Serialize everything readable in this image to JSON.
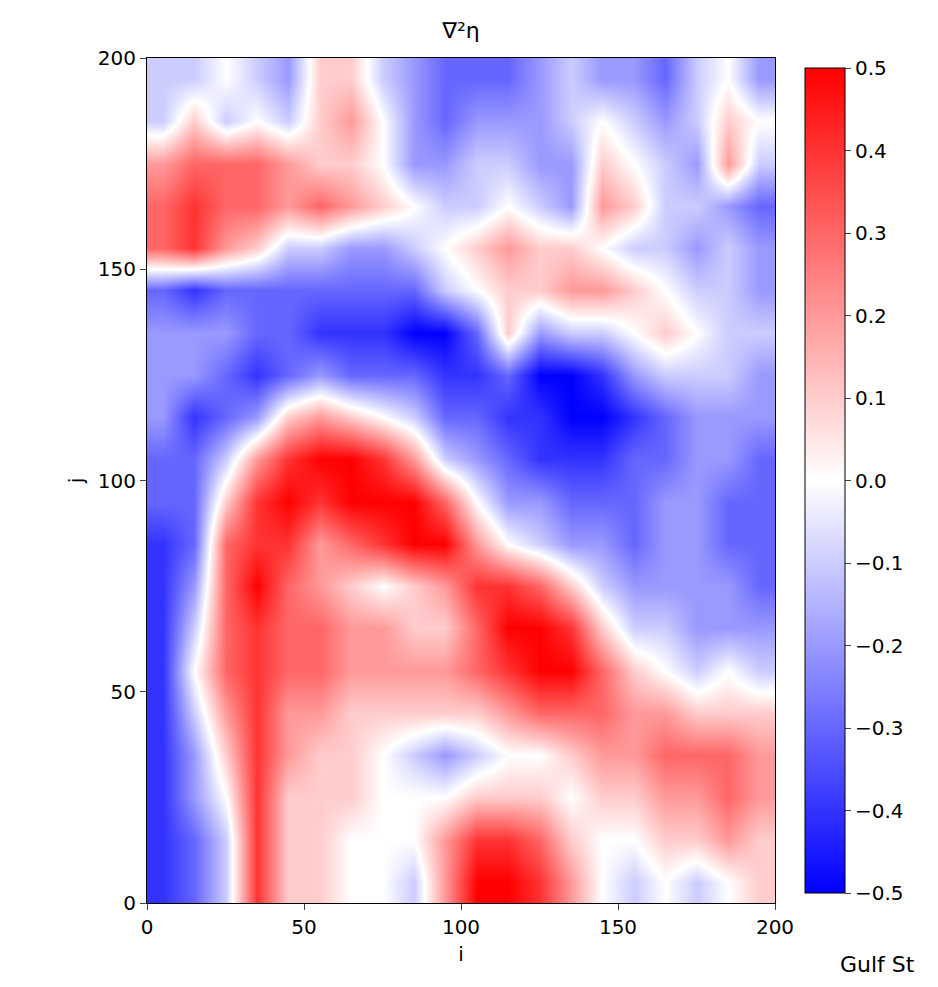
{
  "chart_data": {
    "type": "heatmap",
    "title": "∇²η",
    "x_label": "i",
    "y_label": "j",
    "x": [
      5,
      15,
      25,
      35,
      45,
      55,
      65,
      75,
      85,
      95,
      105,
      115,
      125,
      135,
      145,
      155,
      165,
      175,
      185,
      195
    ],
    "y": [
      5,
      15,
      25,
      35,
      45,
      55,
      65,
      75,
      85,
      95,
      105,
      115,
      125,
      135,
      145,
      155,
      165,
      175,
      185,
      195
    ],
    "cells": [
      [
        -0.4,
        -0.3,
        -0.1,
        0.4,
        0.1,
        0.1,
        0.0,
        0.0,
        -0.1,
        0.2,
        0.5,
        0.5,
        0.4,
        0.2,
        0.0,
        -0.1,
        0.0,
        -0.1,
        0.0,
        0.1
      ],
      [
        -0.4,
        -0.3,
        -0.1,
        0.4,
        0.1,
        0.1,
        0.0,
        0.0,
        0.0,
        0.2,
        0.4,
        0.4,
        0.3,
        0.1,
        0.0,
        0.0,
        0.1,
        0.1,
        0.2,
        0.1
      ],
      [
        -0.4,
        -0.2,
        0.0,
        0.4,
        0.1,
        0.1,
        0.1,
        0.0,
        0.0,
        0.0,
        0.1,
        0.1,
        0.1,
        0.0,
        0.1,
        0.1,
        0.2,
        0.2,
        0.3,
        0.2
      ],
      [
        -0.4,
        -0.2,
        0.1,
        0.4,
        0.2,
        0.1,
        0.1,
        0.0,
        -0.1,
        -0.2,
        -0.1,
        0.0,
        0.0,
        0.1,
        0.2,
        0.2,
        0.3,
        0.3,
        0.3,
        0.2
      ],
      [
        -0.4,
        -0.1,
        0.2,
        0.4,
        0.2,
        0.2,
        0.1,
        0.1,
        0.1,
        0.1,
        0.1,
        0.2,
        0.3,
        0.3,
        0.3,
        0.2,
        0.2,
        0.1,
        0.1,
        0.1
      ],
      [
        -0.4,
        0.0,
        0.3,
        0.4,
        0.3,
        0.3,
        0.2,
        0.2,
        0.2,
        0.2,
        0.3,
        0.4,
        0.5,
        0.5,
        0.3,
        0.1,
        0.0,
        -0.1,
        0.0,
        -0.1
      ],
      [
        -0.4,
        -0.1,
        0.3,
        0.4,
        0.3,
        0.3,
        0.2,
        0.2,
        0.1,
        0.1,
        0.3,
        0.5,
        0.5,
        0.4,
        0.1,
        -0.1,
        -0.1,
        -0.2,
        -0.2,
        -0.2
      ],
      [
        -0.4,
        -0.2,
        0.3,
        0.5,
        0.3,
        0.2,
        0.1,
        0.0,
        0.1,
        0.2,
        0.4,
        0.4,
        0.3,
        0.1,
        -0.1,
        -0.2,
        -0.2,
        -0.2,
        -0.2,
        -0.3
      ],
      [
        -0.4,
        -0.3,
        0.3,
        0.4,
        0.4,
        0.2,
        0.3,
        0.4,
        0.5,
        0.5,
        0.2,
        0.0,
        -0.1,
        -0.2,
        -0.2,
        -0.3,
        -0.2,
        -0.2,
        -0.3,
        -0.3
      ],
      [
        -0.3,
        -0.3,
        0.1,
        0.4,
        0.5,
        0.4,
        0.5,
        0.5,
        0.5,
        0.3,
        0.0,
        -0.2,
        -0.2,
        -0.3,
        -0.3,
        -0.3,
        -0.2,
        -0.2,
        -0.3,
        -0.3
      ],
      [
        -0.3,
        -0.3,
        -0.1,
        0.2,
        0.4,
        0.5,
        0.5,
        0.4,
        0.2,
        -0.1,
        -0.2,
        -0.3,
        -0.4,
        -0.4,
        -0.4,
        -0.3,
        -0.3,
        -0.2,
        -0.2,
        -0.3
      ],
      [
        -0.2,
        -0.4,
        -0.3,
        -0.2,
        0.1,
        0.2,
        0.1,
        0.0,
        -0.1,
        -0.3,
        -0.3,
        -0.4,
        -0.4,
        -0.5,
        -0.5,
        -0.4,
        -0.3,
        -0.2,
        -0.2,
        -0.2
      ],
      [
        -0.2,
        -0.2,
        -0.3,
        -0.4,
        -0.3,
        -0.2,
        -0.3,
        -0.3,
        -0.3,
        -0.4,
        -0.4,
        -0.3,
        -0.5,
        -0.5,
        -0.4,
        -0.2,
        -0.1,
        -0.1,
        -0.1,
        -0.2
      ],
      [
        -0.2,
        -0.2,
        -0.2,
        -0.3,
        -0.3,
        -0.4,
        -0.4,
        -0.4,
        -0.5,
        -0.5,
        -0.3,
        0.1,
        -0.2,
        -0.1,
        -0.1,
        0.0,
        0.1,
        0.0,
        -0.1,
        -0.1
      ],
      [
        -0.3,
        -0.4,
        -0.3,
        -0.3,
        -0.3,
        -0.3,
        -0.3,
        -0.3,
        -0.3,
        -0.1,
        0.0,
        0.1,
        0.1,
        0.2,
        0.2,
        0.1,
        0.0,
        -0.1,
        -0.1,
        -0.2
      ],
      [
        0.3,
        0.4,
        0.2,
        0.1,
        -0.1,
        -0.1,
        -0.2,
        -0.2,
        -0.1,
        0.0,
        0.1,
        0.2,
        0.1,
        0.1,
        0.0,
        -0.1,
        -0.1,
        -0.2,
        -0.1,
        -0.2
      ],
      [
        0.3,
        0.4,
        0.3,
        0.3,
        0.2,
        0.3,
        0.2,
        0.1,
        0.0,
        -0.1,
        -0.1,
        0.0,
        -0.1,
        -0.2,
        0.2,
        0.1,
        -0.1,
        -0.1,
        -0.2,
        -0.3
      ],
      [
        0.2,
        0.3,
        0.3,
        0.3,
        0.2,
        0.1,
        0.1,
        0.0,
        -0.2,
        -0.2,
        -0.1,
        -0.1,
        -0.2,
        -0.2,
        0.1,
        0.0,
        -0.1,
        -0.2,
        0.2,
        -0.1
      ],
      [
        -0.1,
        0.1,
        -0.1,
        0.0,
        -0.1,
        0.1,
        0.2,
        0.0,
        -0.2,
        -0.3,
        -0.2,
        -0.2,
        -0.2,
        -0.1,
        0.0,
        -0.1,
        -0.2,
        -0.1,
        0.1,
        0.0
      ],
      [
        -0.1,
        -0.1,
        0.0,
        -0.1,
        -0.2,
        0.1,
        0.1,
        -0.1,
        -0.2,
        -0.3,
        -0.3,
        -0.3,
        -0.2,
        -0.1,
        -0.2,
        -0.2,
        -0.3,
        -0.1,
        0.0,
        -0.2
      ]
    ],
    "xlim": [
      0,
      200
    ],
    "ylim": [
      0,
      200
    ],
    "xticks": [
      0,
      50,
      100,
      150,
      200
    ],
    "yticks": [
      0,
      50,
      100,
      150,
      200
    ],
    "colors": [
      "#0000ff",
      "#ffffff",
      "#ff0000"
    ],
    "colorbar_range": [
      -0.5,
      0.5
    ],
    "colorbar_ticks": [
      {
        "value": -0.5,
        "label": "−0.5"
      },
      {
        "value": -0.4,
        "label": "−0.4"
      },
      {
        "value": -0.3,
        "label": "−0.3"
      },
      {
        "value": -0.2,
        "label": "−0.2"
      },
      {
        "value": -0.1,
        "label": "−0.1"
      },
      {
        "value": 0,
        "label": "0.0"
      },
      0.1,
      0.2,
      0.3,
      0.4,
      0.5
    ],
    "annotations": [
      "Gulf St"
    ]
  }
}
